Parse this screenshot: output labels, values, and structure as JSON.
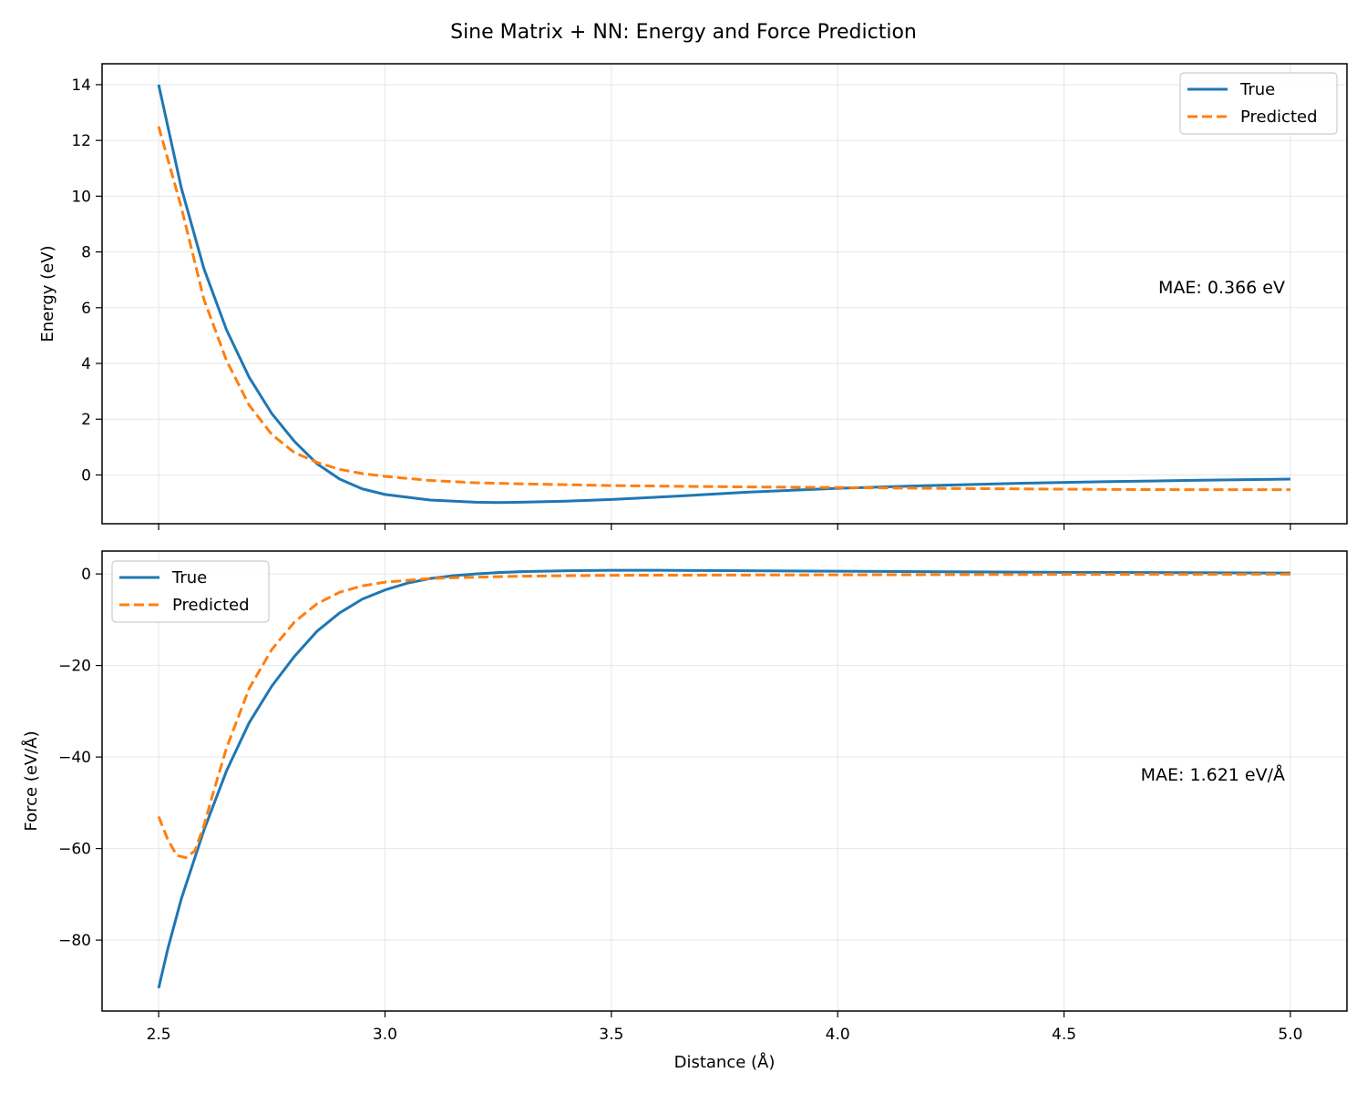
{
  "figure": {
    "title": "Sine Matrix + NN: Energy and Force Prediction",
    "shared_xlabel": "Distance (Å)"
  },
  "colors": {
    "true": "#1f77b4",
    "predicted": "#ff7f0e",
    "grid": "#e6e6e6"
  },
  "chart_data": [
    {
      "type": "line",
      "ylabel": "Energy (eV)",
      "xlim": [
        2.375,
        5.125
      ],
      "ylim": [
        -1.75,
        14.75
      ],
      "xticks": [
        2.5,
        3.0,
        3.5,
        4.0,
        4.5,
        5.0
      ],
      "yticks": [
        0,
        2,
        4,
        6,
        8,
        10,
        12,
        14
      ],
      "grid": true,
      "legend": "upper right",
      "annotation": "MAE: 0.366 eV",
      "series": [
        {
          "name": "True",
          "style": "solid",
          "x": [
            2.5,
            2.55,
            2.6,
            2.65,
            2.7,
            2.75,
            2.8,
            2.85,
            2.9,
            2.95,
            3.0,
            3.1,
            3.2,
            3.25,
            3.3,
            3.4,
            3.5,
            3.6,
            3.8,
            4.0,
            4.2,
            4.4,
            4.6,
            4.8,
            5.0
          ],
          "y": [
            14.0,
            10.3,
            7.4,
            5.2,
            3.5,
            2.2,
            1.2,
            0.4,
            -0.15,
            -0.5,
            -0.7,
            -0.9,
            -0.98,
            -0.99,
            -0.98,
            -0.94,
            -0.88,
            -0.8,
            -0.62,
            -0.48,
            -0.38,
            -0.3,
            -0.24,
            -0.19,
            -0.15
          ]
        },
        {
          "name": "Predicted",
          "style": "dashed",
          "x": [
            2.5,
            2.55,
            2.6,
            2.65,
            2.7,
            2.75,
            2.8,
            2.85,
            2.9,
            2.95,
            3.0,
            3.1,
            3.2,
            3.3,
            3.4,
            3.5,
            3.6,
            3.8,
            4.0,
            4.2,
            4.4,
            4.6,
            4.8,
            5.0
          ],
          "y": [
            12.5,
            9.6,
            6.3,
            4.1,
            2.5,
            1.45,
            0.8,
            0.45,
            0.2,
            0.05,
            -0.05,
            -0.2,
            -0.28,
            -0.32,
            -0.35,
            -0.38,
            -0.4,
            -0.43,
            -0.45,
            -0.48,
            -0.5,
            -0.52,
            -0.53,
            -0.53
          ]
        }
      ]
    },
    {
      "type": "line",
      "ylabel": "Force (eV/Å)",
      "xlim": [
        2.375,
        5.125
      ],
      "ylim": [
        -95.5,
        5
      ],
      "xticks": [
        2.5,
        3.0,
        3.5,
        4.0,
        4.5,
        5.0
      ],
      "yticks": [
        0,
        -20,
        -40,
        -60,
        -80
      ],
      "grid": true,
      "legend": "upper left",
      "annotation": "MAE: 1.621 eV/Å",
      "series": [
        {
          "name": "True",
          "style": "solid",
          "x": [
            2.5,
            2.52,
            2.55,
            2.6,
            2.65,
            2.7,
            2.75,
            2.8,
            2.85,
            2.9,
            2.95,
            3.0,
            3.05,
            3.1,
            3.15,
            3.2,
            3.25,
            3.3,
            3.4,
            3.5,
            3.6,
            3.7,
            3.8,
            4.0,
            4.2,
            4.5,
            5.0
          ],
          "y": [
            -90.5,
            -82,
            -71,
            -56,
            -43,
            -32.5,
            -24.5,
            -18,
            -12.5,
            -8.5,
            -5.5,
            -3.5,
            -2,
            -1,
            -0.4,
            0,
            0.3,
            0.5,
            0.7,
            0.8,
            0.8,
            0.75,
            0.7,
            0.6,
            0.5,
            0.35,
            0.2
          ]
        },
        {
          "name": "Predicted",
          "style": "dashed",
          "x": [
            2.5,
            2.52,
            2.54,
            2.56,
            2.58,
            2.6,
            2.62,
            2.65,
            2.7,
            2.75,
            2.8,
            2.85,
            2.9,
            2.95,
            3.0,
            3.1,
            3.2,
            3.3,
            3.5,
            4.0,
            4.5,
            5.0
          ],
          "y": [
            -53,
            -58,
            -61.5,
            -62,
            -60.5,
            -55,
            -48,
            -38,
            -25,
            -16.5,
            -10.5,
            -6.5,
            -4,
            -2.6,
            -1.8,
            -1,
            -0.7,
            -0.5,
            -0.3,
            -0.2,
            -0.1,
            -0.05
          ]
        }
      ]
    }
  ]
}
